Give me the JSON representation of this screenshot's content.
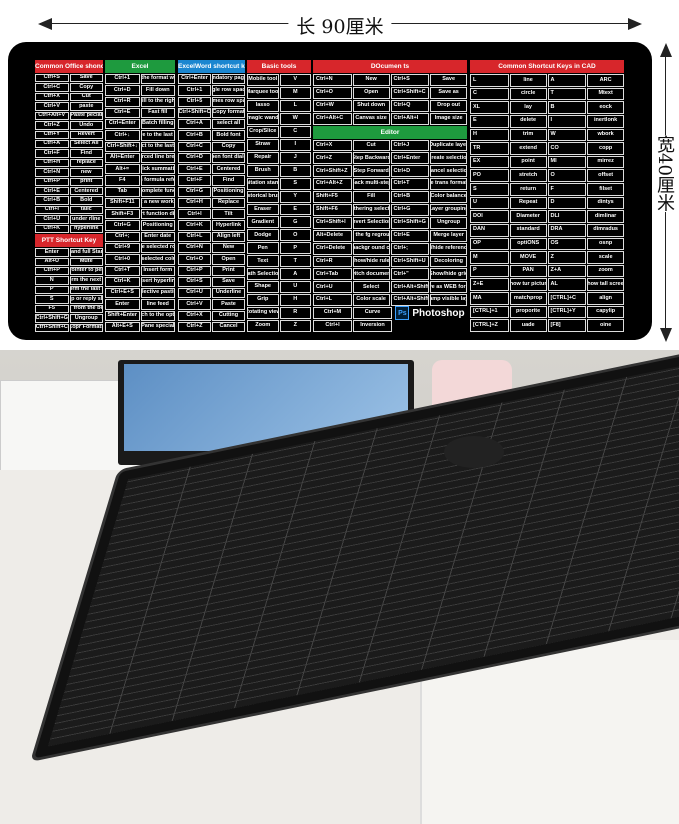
{
  "dimensions": {
    "length": "长 90厘米",
    "width": "宽40厘米"
  },
  "columns": [
    {
      "id": "office",
      "header": "Common Office shoncuts",
      "color": "#d7262b",
      "rows": [
        [
          "Ctrl+S",
          "Save"
        ],
        [
          "Ctrl+C",
          "Copy"
        ],
        [
          "Ctrl+X",
          "Cut"
        ],
        [
          "Ctrl+V",
          "paste"
        ],
        [
          "Ctrl+Alt+V",
          "Paste pecial"
        ],
        [
          "Ctrl+Z",
          "Undo"
        ],
        [
          "Ctrl+Y",
          "Revert"
        ],
        [
          "Ctrl+A",
          "Select All"
        ],
        [
          "Ctrl+F",
          "Find"
        ],
        [
          "Ctrl+H",
          "replace"
        ],
        [
          "Ctrl+N",
          "new"
        ],
        [
          "Ctrl+P",
          "print"
        ],
        [
          "Ctrl+E",
          "Centered"
        ],
        [
          "Ctrl+B",
          "Bold"
        ],
        [
          "Ctrl+I",
          "talic"
        ],
        [
          "Ctrl+U",
          "under rline"
        ],
        [
          "Ctrl+K",
          "hyperlink"
        ]
      ],
      "sub": {
        "header": "PTT Shortcut Key",
        "color": "#d7262b",
        "rows": [
          [
            "Enter",
            "Open and full Start play"
          ],
          [
            "Alt+U",
            "Mute"
          ],
          [
            "Ctrl+P",
            "Pointer to pen"
          ],
          [
            "N",
            "Perform the next slide"
          ],
          [
            "P",
            "Perform the last slide"
          ],
          [
            "S",
            "Stop or reply slide"
          ],
          [
            "F5",
            "Run PPT from the beginning"
          ],
          [
            "Ctrl+Shift+G",
            "Ungroup"
          ],
          [
            "Ctrl+Shift+C",
            "Copr Formats"
          ]
        ]
      }
    },
    {
      "id": "excel",
      "header": "Excel",
      "color": "#1e9a3e",
      "rows": [
        [
          "Ctrl+1",
          "Open the format window"
        ],
        [
          "Ctrl+D",
          "Fill down"
        ],
        [
          "Ctrl+R",
          "Fill to the right"
        ],
        [
          "Ctrl+E",
          "Fast fill"
        ],
        [
          "Ctrl+Enter",
          "Batch filling"
        ],
        [
          "Ctrl+↓",
          "Move to the last row"
        ],
        [
          "Ctrl+Shift+↓",
          "Select to the last row"
        ],
        [
          "Alt+Enter",
          "Forced line break"
        ],
        [
          "Alt+=",
          "Quick summation"
        ],
        [
          "F4",
          "Switch formula reference"
        ],
        [
          "Tab",
          "Autocomplete functions"
        ],
        [
          "Shift+F11",
          "Insert a new worksheet"
        ],
        [
          "Shift+F3",
          "Insert function dialog"
        ],
        [
          "Ctrl+G",
          "Positioning"
        ],
        [
          "Ctrl+;",
          "Enter date"
        ],
        [
          "Ctrl+9",
          "Hide selected rows"
        ],
        [
          "Ctrl+0",
          "Hide selected columns"
        ],
        [
          "Ctrl+T",
          "Insert form"
        ],
        [
          "Ctrl+K",
          "Insert hyperlink"
        ],
        [
          "Ctrl+E+S",
          "Selective pasting"
        ],
        [
          "Enter",
          "line feed"
        ],
        [
          "Shift+Enter",
          "Switch to the options"
        ],
        [
          "Alt+E+S",
          "Pane special"
        ]
      ]
    },
    {
      "id": "word",
      "header": "ExcelWord shortcut key",
      "color": "#1a86d0",
      "rows": [
        [
          "Ctrl+Enter",
          "Mandatory paging"
        ],
        [
          "Ctrl+1",
          "Single row spacing"
        ],
        [
          "Ctrl+5",
          "1.5 times row spacing"
        ],
        [
          "Ctrl+Shift+C",
          "Copy format"
        ],
        [
          "Ctrl+A",
          "select all"
        ],
        [
          "Ctrl+B",
          "Bold font"
        ],
        [
          "Ctrl+C",
          "Copy"
        ],
        [
          "Ctrl+D",
          "Open font dialog"
        ],
        [
          "Ctrl+E",
          "Centered"
        ],
        [
          "Ctrl+F",
          "Find"
        ],
        [
          "Ctrl+G",
          "Positioning"
        ],
        [
          "Ctrl+H",
          "Replace"
        ],
        [
          "Ctrl+I",
          "Tilt"
        ],
        [
          "Ctrl+K",
          "Hyperlink"
        ],
        [
          "Ctrl+L",
          "Align left"
        ],
        [
          "Ctrl+N",
          "New"
        ],
        [
          "Ctrl+O",
          "Open"
        ],
        [
          "Ctrl+P",
          "Print"
        ],
        [
          "Ctrl+S",
          "Save"
        ],
        [
          "Ctrl+U",
          "Underline"
        ],
        [
          "Ctrl+V",
          "Paste"
        ],
        [
          "Ctrl+X",
          "Cutting"
        ],
        [
          "Ctrl+Z",
          "Cancel"
        ]
      ]
    },
    {
      "id": "basic",
      "header": "Basic tools",
      "color": "#d7262b",
      "rows": [
        [
          "Mobile tool",
          "V"
        ],
        [
          "Marquee tool",
          "M"
        ],
        [
          "lasso",
          "L"
        ],
        [
          "magic wand",
          "W"
        ],
        [
          "Crop/Slice",
          "C"
        ],
        [
          "Straw",
          "I"
        ],
        [
          "Repair",
          "J"
        ],
        [
          "Brush",
          "B"
        ],
        [
          "Imitation stamp",
          "S"
        ],
        [
          "Historical brush",
          "Y"
        ],
        [
          "Eraser",
          "E"
        ],
        [
          "Gradient",
          "G"
        ],
        [
          "Dodge",
          "O"
        ],
        [
          "Pen",
          "P"
        ],
        [
          "Text",
          "T"
        ],
        [
          "Path Selection",
          "A"
        ],
        [
          "Shape",
          "U"
        ],
        [
          "Grip",
          "H"
        ],
        [
          "Rotating view",
          "R"
        ],
        [
          "Zoom",
          "Z"
        ]
      ]
    },
    {
      "id": "docs",
      "header": "DOcumen ts",
      "color": "#d7262b",
      "rows": [
        [
          "Ctrl+N",
          "New",
          "Ctrl+S",
          "Save"
        ],
        [
          "Ctrl+O",
          "Open",
          "Ctrl+Shift+C",
          "Save as"
        ],
        [
          "Ctrl+W",
          "Shut down",
          "Ctrl+Q",
          "Drop out"
        ],
        [
          "Ctrl+Alt+C",
          "Canvas size",
          "Ctrl+Alt+I",
          "Image size"
        ]
      ],
      "sub": {
        "header": "Editor",
        "color": "#1e9a3e",
        "rows": [
          [
            "Ctrl+X",
            "Cut",
            "Ctrl+J",
            "Duplicate layer"
          ],
          [
            "Ctrl+Z",
            "Step Backward",
            "Ctrl+Enter",
            "Create selection"
          ],
          [
            "Ctrl+Shift+Z",
            "Step Forward",
            "Ctrl+D",
            "Cancel selection"
          ],
          [
            "Ctrl+Alt+Z",
            "Back multi-step",
            "Ctrl+T",
            "Free trans formation"
          ],
          [
            "Shift+F5",
            "Fill",
            "Ctrl+B",
            "Color balance"
          ],
          [
            "Shift+F6",
            "Feathering selection",
            "Ctrl+G",
            "Layer grouping"
          ],
          [
            "Ctrl+Shift+I",
            "Invert Selection",
            "Ctrl+Shift+G",
            "Ungroup"
          ],
          [
            "Alt+Delete",
            "Fill the fg reground",
            "Ctrl+E",
            "Merge layer"
          ],
          [
            "Ctrl+Delete",
            "Fill backgr ound color",
            "Ctrl+;",
            "Show/hide reference line"
          ],
          [
            "Ctrl+R",
            "Show/hide ruler",
            "Ctrl+Shift+U",
            "Decoloring"
          ],
          [
            "Ctrl+Tab",
            "Switch documents",
            "Ctrl+\"",
            "Show/hide grid"
          ],
          [
            "Ctrl+U",
            "Select",
            "Ctrl+Alt+Shift+S",
            "Save as WEB format"
          ],
          [
            "Ctrl+L",
            "Color scale",
            "Ctrl+Alt+Shift+E",
            "Stamp visible layer"
          ],
          [
            "Ctrl+M",
            "Curve"
          ],
          [
            "Ctrl+I",
            "Inversion"
          ]
        ],
        "logo": {
          "mark": "Ps",
          "text": "Photoshop"
        }
      }
    },
    {
      "id": "cad",
      "header": "Common Shortcut Keys in CAD",
      "color": "#d7262b",
      "rows": [
        [
          "L",
          "line",
          "A",
          "ARC"
        ],
        [
          "C",
          "circle",
          "T",
          "Mtext"
        ],
        [
          "XL",
          "lay",
          "B",
          "eock"
        ],
        [
          "E",
          "delete",
          "I",
          "inertlonk"
        ],
        [
          "H",
          "trim",
          "W",
          "wbork"
        ],
        [
          "TR",
          "extend",
          "CO",
          "copp"
        ],
        [
          "EX",
          "point",
          "MI",
          "mirrez"
        ],
        [
          "PO",
          "stretch",
          "O",
          "offset"
        ],
        [
          "S",
          "return",
          "F",
          "filset"
        ],
        [
          "U",
          "Repeat",
          "D",
          "dintys"
        ],
        [
          "DOI",
          "Diameter",
          "DLI",
          "dimlinar"
        ],
        [
          "DAN",
          "standard",
          "DRA",
          "dimradus"
        ],
        [
          "OP",
          "optiONS",
          "OS",
          "osnp"
        ],
        [
          "M",
          "MOVE",
          "Z",
          "scale"
        ],
        [
          "P",
          "PAN",
          "Z+A",
          "zoom"
        ],
        [
          "Z+E",
          "show tur picture",
          "AL",
          "show tall screen"
        ],
        [
          "MA",
          "matchprop",
          "[CTRL]+C",
          "align"
        ],
        [
          "[CTRL]+1",
          "proporite",
          "[CTRL]+Y",
          "capylip"
        ],
        [
          "[CTRL]+Z",
          "uade",
          "[F8]",
          "oine"
        ]
      ]
    }
  ]
}
